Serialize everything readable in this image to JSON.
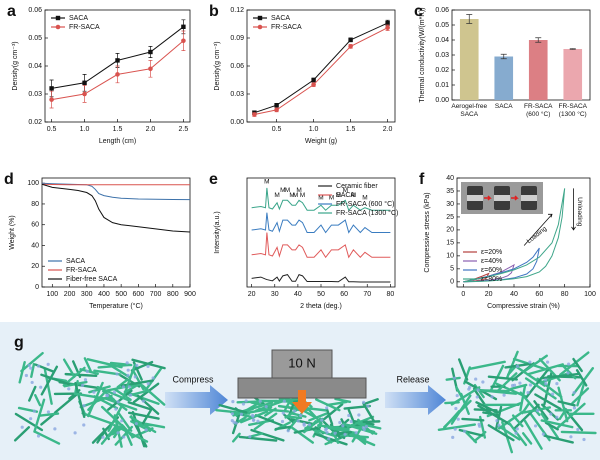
{
  "chart_data": [
    {
      "panel": "a",
      "type": "line",
      "xlabel": "Length (cm)",
      "ylabel": "Density(g cm⁻³)",
      "x": [
        0.5,
        1,
        1.5,
        2,
        2.5
      ],
      "xlim": [
        0.4,
        2.6
      ],
      "xticks": [
        0.5,
        {
          "value": 1,
          "label": "1.0"
        },
        1.5,
        {
          "value": 2,
          "label": "2.0"
        },
        2.5
      ],
      "ylim": [
        0.02,
        0.06
      ],
      "yticks": [
        0.02,
        0.03,
        0.04,
        0.05,
        0.06
      ],
      "legend": "upper left",
      "series": [
        {
          "name": "SACA",
          "color": "#111111",
          "marker": "square",
          "values": [
            0.032,
            0.034,
            0.042,
            0.045,
            0.054
          ],
          "errors": [
            0.003,
            0.003,
            0.0025,
            0.002,
            0.0025
          ]
        },
        {
          "name": "FR-SACA",
          "color": "#d9534f",
          "marker": "circle",
          "values": [
            0.028,
            0.03,
            0.037,
            0.039,
            0.049
          ],
          "errors": [
            0.003,
            0.003,
            0.003,
            0.003,
            0.0035
          ]
        }
      ]
    },
    {
      "panel": "b",
      "type": "line",
      "xlabel": "Weight (g)",
      "ylabel": "Density(g cm⁻³)",
      "x": [
        0.2,
        0.5,
        1,
        1.5,
        2
      ],
      "xlim": [
        0.1,
        2.1
      ],
      "xticks": [
        0.5,
        {
          "value": 1,
          "label": "1.0"
        },
        1.5,
        {
          "value": 2,
          "label": "2.0"
        }
      ],
      "ylim": [
        0,
        0.12
      ],
      "yticks": [
        {
          "value": 0,
          "label": "0.00"
        },
        0.03,
        0.06,
        0.09,
        0.12
      ],
      "legend": "upper left",
      "series": [
        {
          "name": "SACA",
          "color": "#111111",
          "marker": "square",
          "values": [
            0.01,
            0.018,
            0.045,
            0.088,
            0.106
          ],
          "errors": [
            0.002,
            0.002,
            0.002,
            0.002,
            0.003
          ]
        },
        {
          "name": "FR-SACA",
          "color": "#d9534f",
          "marker": "circle",
          "values": [
            0.008,
            0.013,
            0.04,
            0.081,
            0.101
          ],
          "errors": [
            0.002,
            0.002,
            0.002,
            0.002,
            0.003
          ]
        }
      ]
    },
    {
      "panel": "c",
      "type": "bar",
      "ylabel": "Thermal conductivity(W/(m*K))",
      "categories": [
        "Aerogel-free\nSACA",
        "SACA",
        "FR-SACA\n(600 °C)",
        "FR-SACA\n(1300 °C)"
      ],
      "values": [
        0.054,
        0.029,
        0.04,
        0.034
      ],
      "errors": [
        0.003,
        0.0015,
        0.0015,
        0.0003
      ],
      "colors": [
        "#cfc58f",
        "#86abcf",
        "#dc7f84",
        "#eba7ae"
      ],
      "ylim": [
        0,
        0.06
      ],
      "yticks": [
        {
          "value": 0,
          "label": "0.00"
        },
        0.01,
        0.02,
        0.03,
        0.04,
        0.05,
        0.06
      ]
    },
    {
      "panel": "d",
      "type": "line",
      "xlabel": "Temperature (°C)",
      "ylabel": "Weight (%)",
      "x": [
        40,
        100,
        150,
        200,
        250,
        300,
        330,
        350,
        370,
        400,
        450,
        500,
        600,
        700,
        800,
        900
      ],
      "xlim": [
        40,
        900
      ],
      "xticks": [
        100,
        200,
        300,
        400,
        500,
        600,
        700,
        800,
        900
      ],
      "ylim": [
        0,
        105
      ],
      "yticks": [
        0,
        20,
        40,
        60,
        80,
        100
      ],
      "legend": "lower left",
      "series": [
        {
          "name": "SACA",
          "color": "#3d72aa",
          "values": [
            100,
            99.5,
            99.2,
            99,
            98.8,
            98.5,
            97,
            94,
            90,
            88,
            86.5,
            85.5,
            84.8,
            84.5,
            84.3,
            84.2
          ]
        },
        {
          "name": "FR-SACA",
          "color": "#d9534f",
          "values": [
            99,
            98.7,
            98.6,
            98.5,
            98.5,
            98.5,
            98.5,
            98.5,
            98.5,
            98.5,
            98.5,
            98.5,
            98.5,
            98.5,
            98.5,
            98.5
          ]
        },
        {
          "name": "Fiber-free SACA",
          "color": "#111111",
          "values": [
            99,
            96,
            95,
            94,
            93,
            91,
            88,
            83,
            75,
            67,
            62,
            60,
            58,
            56,
            54,
            53
          ]
        }
      ]
    },
    {
      "panel": "e",
      "type": "line",
      "xlabel": "2 theta (deg.)",
      "ylabel": "Intensity(a.u.)",
      "x": [
        20,
        24,
        26,
        26.6,
        27.5,
        29,
        31,
        32,
        33.5,
        35.5,
        37.5,
        39,
        40.5,
        42,
        44,
        47,
        50,
        52,
        54.5,
        57.5,
        60.5,
        62,
        64,
        67,
        69,
        72,
        76,
        80
      ],
      "xlim": [
        18,
        82
      ],
      "xticks": [
        20,
        30,
        40,
        50,
        60,
        70,
        80
      ],
      "ylim": [
        0,
        44
      ],
      "legend": "upper right",
      "series": [
        {
          "name": "Ceramic fiber",
          "color": "#222222",
          "values": [
            3.5,
            4,
            3.2,
            3,
            2.8,
            2.5,
            4,
            2.4,
            4.5,
            5,
            2.3,
            2.3,
            5,
            4.5,
            2.2,
            2.2,
            2.2,
            2.2,
            2.2,
            2.1,
            4,
            2.1,
            2.1,
            2,
            2,
            2,
            2,
            2
          ]
        },
        {
          "name": "SACA",
          "color": "#e05a5a",
          "values": [
            13,
            13.5,
            13,
            22,
            13,
            12.5,
            16,
            12.5,
            17,
            17,
            15,
            15,
            17,
            16,
            12,
            12,
            15,
            12,
            15,
            15,
            17,
            12,
            15,
            12,
            14,
            12,
            12,
            12
          ]
        },
        {
          "name": "FR-SACA (600 °C)",
          "color": "#3a7cc0",
          "values": [
            23,
            23.5,
            23,
            30,
            23,
            22.5,
            26,
            22.5,
            27,
            27,
            25,
            25,
            27,
            26,
            22,
            22,
            25,
            22,
            25,
            25,
            27,
            22,
            25,
            22,
            24,
            22,
            22,
            22
          ]
        },
        {
          "name": "FR-SACA (1300 °C)",
          "color": "#3aa58a",
          "values": [
            32,
            32.5,
            32,
            40,
            32,
            31.5,
            34,
            31.5,
            35,
            35,
            33,
            33,
            35,
            34,
            31,
            31,
            33,
            31,
            33,
            33,
            35,
            31,
            33,
            31,
            32,
            31,
            31,
            31
          ]
        }
      ],
      "annotations": [
        {
          "text": "M",
          "x": 26.6,
          "y": 42.5
        },
        {
          "text": "M",
          "x": 31,
          "y": 37
        },
        {
          "text": "M",
          "x": 33.5,
          "y": 39
        },
        {
          "text": "M",
          "x": 35.5,
          "y": 39
        },
        {
          "text": "M",
          "x": 37.5,
          "y": 37
        },
        {
          "text": "M",
          "x": 39,
          "y": 37
        },
        {
          "text": "M",
          "x": 40.5,
          "y": 39
        },
        {
          "text": "M",
          "x": 42,
          "y": 37
        },
        {
          "text": "M",
          "x": 50,
          "y": 36
        },
        {
          "text": "M",
          "x": 54.5,
          "y": 36
        },
        {
          "text": "M",
          "x": 57.5,
          "y": 37
        },
        {
          "text": "M",
          "x": 60.5,
          "y": 39
        },
        {
          "text": "M",
          "x": 64,
          "y": 37
        },
        {
          "text": "M",
          "x": 69,
          "y": 36
        }
      ]
    },
    {
      "panel": "f",
      "type": "line",
      "xlabel": "Compressive strain (%)",
      "ylabel": "Compressive stress (kPa)",
      "xlim": [
        -5,
        100
      ],
      "xticks": [
        0,
        20,
        40,
        60,
        80,
        100
      ],
      "ylim": [
        -2,
        40
      ],
      "yticks": [
        0,
        5,
        10,
        15,
        20,
        25,
        30,
        35,
        40
      ],
      "legend": "lower left",
      "series": [
        {
          "name": "ε=20%",
          "color": "#b5403c",
          "x": [
            0,
            5,
            10,
            15,
            20,
            18,
            15,
            10,
            5,
            0
          ],
          "values": [
            0,
            0.6,
            1.3,
            2.2,
            3.2,
            1.4,
            0.8,
            0.4,
            0.1,
            0
          ]
        },
        {
          "name": "ε=40%",
          "color": "#8a5fb0",
          "x": [
            0,
            10,
            20,
            30,
            40,
            38,
            35,
            30,
            20,
            10,
            0
          ],
          "values": [
            0,
            1,
            2.2,
            3.8,
            6.5,
            3.5,
            2.3,
            1.4,
            0.6,
            0.2,
            0
          ]
        },
        {
          "name": "ε=60%",
          "color": "#3f75c2",
          "x": [
            0,
            10,
            20,
            30,
            40,
            50,
            55,
            60,
            58,
            55,
            50,
            40,
            30,
            20,
            10,
            0
          ],
          "values": [
            0,
            1,
            2.2,
            3.5,
            5,
            7.5,
            9.5,
            13,
            8,
            5,
            3,
            1.5,
            0.8,
            0.4,
            0.1,
            0
          ]
        },
        {
          "name": "ε=80%",
          "color": "#3fa68a",
          "x": [
            0,
            10,
            20,
            30,
            40,
            50,
            60,
            70,
            75,
            80,
            78,
            75,
            70,
            65,
            60,
            50,
            40,
            30,
            20,
            10,
            0
          ],
          "values": [
            0,
            1,
            2,
            3.2,
            4.6,
            6.5,
            9.5,
            15,
            22,
            36,
            25,
            17,
            10,
            6,
            3.8,
            2,
            1.2,
            0.7,
            0.3,
            0.1,
            0
          ]
        }
      ],
      "annotations": [
        {
          "text": "Loading",
          "x": 58,
          "y": 18
        },
        {
          "text": "Unloading",
          "x": 92,
          "y": 27
        }
      ]
    }
  ],
  "diagram": {
    "panel": "g",
    "steps": [
      "Compress",
      "Release"
    ],
    "force": "10 N"
  }
}
